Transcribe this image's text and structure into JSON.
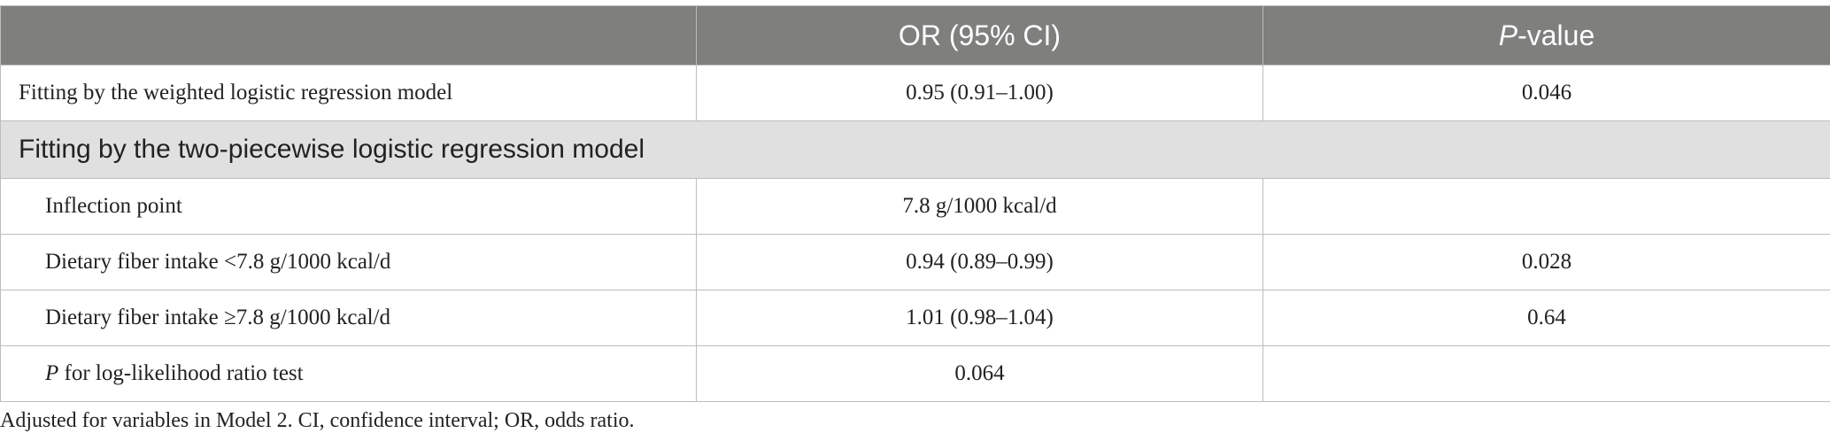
{
  "table": {
    "header": {
      "col2": "OR (95% CI)",
      "col3": {
        "italic": "P",
        "text": "-value"
      }
    },
    "rows": [
      {
        "label": "Fitting by the weighted logistic regression model",
        "or": "0.95 (0.91–1.00)",
        "p": "0.046"
      },
      {
        "section": "Fitting by the two-piecewise logistic regression model"
      },
      {
        "label": "Inflection point",
        "or": "7.8 g/1000 kcal/d"
      },
      {
        "label": "Dietary fiber intake <7.8 g/1000 kcal/d",
        "or": "0.94 (0.89–0.99)",
        "p": "0.028"
      },
      {
        "label": "Dietary fiber intake ≥7.8 g/1000 kcal/d",
        "or": "1.01 (0.98–1.04)",
        "p": "0.64"
      },
      {
        "label": {
          "italic": "P",
          "text": " for log-likelihood ratio test"
        },
        "or": "0.064"
      }
    ]
  },
  "footnote": "Adjusted for variables in Model 2. CI, confidence interval; OR, odds ratio."
}
